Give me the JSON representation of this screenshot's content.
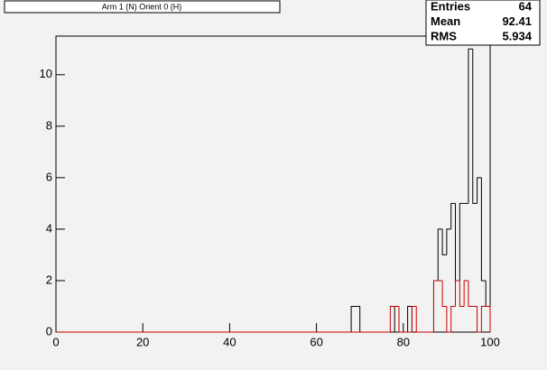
{
  "chart_data": {
    "type": "histogram",
    "title": "Arm 1 (N) Orient 0 (H)",
    "bins": [
      0,
      1,
      2,
      3,
      4,
      5,
      6,
      7,
      8,
      9,
      10,
      11,
      12,
      13,
      14,
      15,
      16,
      17,
      18,
      19,
      20,
      21,
      22,
      23,
      24,
      25,
      26,
      27,
      28,
      29,
      30,
      31,
      32,
      33,
      34,
      35,
      36,
      37,
      38,
      39,
      40,
      41,
      42,
      43,
      44,
      45,
      46,
      47,
      48,
      49,
      50,
      51,
      52,
      53,
      54,
      55,
      56,
      57,
      58,
      59,
      60,
      61,
      62,
      63,
      64,
      65,
      66,
      67,
      68,
      69,
      70,
      71,
      72,
      73,
      74,
      75,
      76,
      77,
      78,
      79,
      80,
      81,
      82,
      83,
      84,
      85,
      86,
      87,
      88,
      89,
      90,
      91,
      92,
      93,
      94,
      95,
      96,
      97,
      98,
      99,
      100
    ],
    "series": [
      {
        "color": "#000000",
        "values": [
          0,
          0,
          0,
          0,
          0,
          0,
          0,
          0,
          0,
          0,
          0,
          0,
          0,
          0,
          0,
          0,
          0,
          0,
          0,
          0,
          0,
          0,
          0,
          0,
          0,
          0,
          0,
          0,
          0,
          0,
          0,
          0,
          0,
          0,
          0,
          0,
          0,
          0,
          0,
          0,
          0,
          0,
          0,
          0,
          0,
          0,
          0,
          0,
          0,
          0,
          0,
          0,
          0,
          0,
          0,
          0,
          0,
          0,
          0,
          0,
          0,
          0,
          0,
          0,
          0,
          0,
          0,
          0,
          1,
          1,
          0,
          0,
          0,
          0,
          0,
          0,
          0,
          0,
          1,
          0,
          0,
          1,
          0,
          0,
          0,
          0,
          0,
          2,
          4,
          3,
          4,
          5,
          2,
          5,
          5,
          11,
          5,
          6,
          2,
          1
        ]
      },
      {
        "color": "#cc0000",
        "values": [
          0,
          0,
          0,
          0,
          0,
          0,
          0,
          0,
          0,
          0,
          0,
          0,
          0,
          0,
          0,
          0,
          0,
          0,
          0,
          0,
          0,
          0,
          0,
          0,
          0,
          0,
          0,
          0,
          0,
          0,
          0,
          0,
          0,
          0,
          0,
          0,
          0,
          0,
          0,
          0,
          0,
          0,
          0,
          0,
          0,
          0,
          0,
          0,
          0,
          0,
          0,
          0,
          0,
          0,
          0,
          0,
          0,
          0,
          0,
          0,
          0,
          0,
          0,
          0,
          0,
          0,
          0,
          0,
          0,
          0,
          0,
          0,
          0,
          0,
          0,
          0,
          0,
          1,
          1,
          0,
          0,
          0,
          1,
          0,
          0,
          0,
          0,
          2,
          2,
          1,
          0,
          1,
          2,
          1,
          2,
          1,
          1,
          0,
          1,
          1
        ]
      }
    ],
    "xlim": [
      0,
      100
    ],
    "xticks": [
      0,
      20,
      40,
      60,
      80,
      100
    ],
    "ylim": [
      0,
      11.5
    ],
    "yticks": [
      0,
      2,
      4,
      6,
      8,
      10
    ],
    "stats": [
      {
        "label": "Entries",
        "value": "64"
      },
      {
        "label": "Mean",
        "value": "92.41"
      },
      {
        "label": "RMS",
        "value": "5.934"
      }
    ]
  }
}
